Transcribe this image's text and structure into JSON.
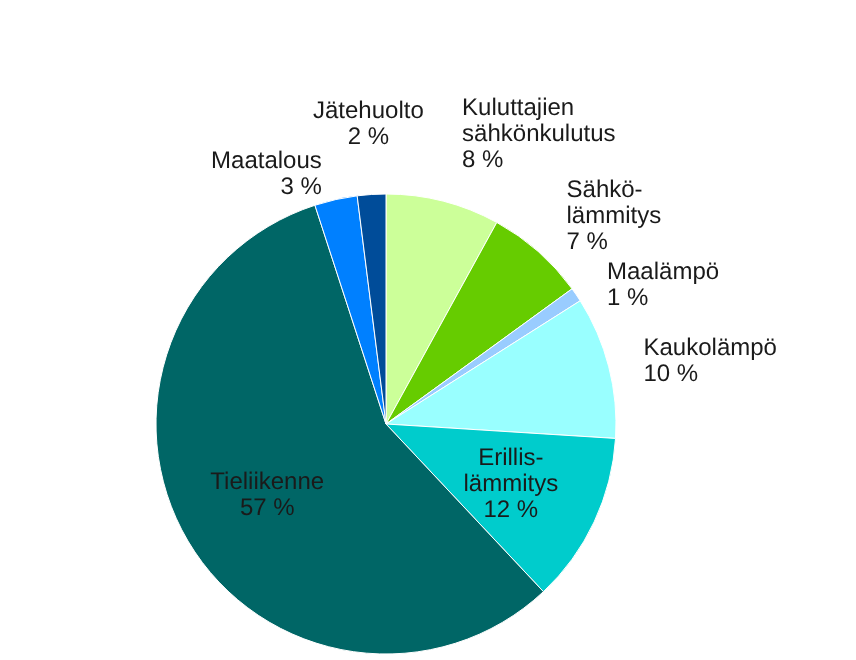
{
  "chart_data": {
    "type": "pie",
    "categories": [
      "Kuluttajien sähkönkulutus",
      "Sähkö-lämmitys",
      "Maalämpö",
      "Kaukolämpö",
      "Erillis-lämmitys",
      "Tieliikenne",
      "Maatalous",
      "Jätehuolto"
    ],
    "values": [
      8,
      7,
      1,
      10,
      12,
      57,
      3,
      2
    ],
    "colors": [
      "#ccff99",
      "#66cc00",
      "#99ccff",
      "#99ffff",
      "#00cccc",
      "#006666",
      "#0080ff",
      "#004c99"
    ],
    "value_labels": [
      "8 %",
      "7 %",
      "1 %",
      "10 %",
      "12 %",
      "57 %",
      "3 %",
      "2 %"
    ],
    "legend": false
  }
}
